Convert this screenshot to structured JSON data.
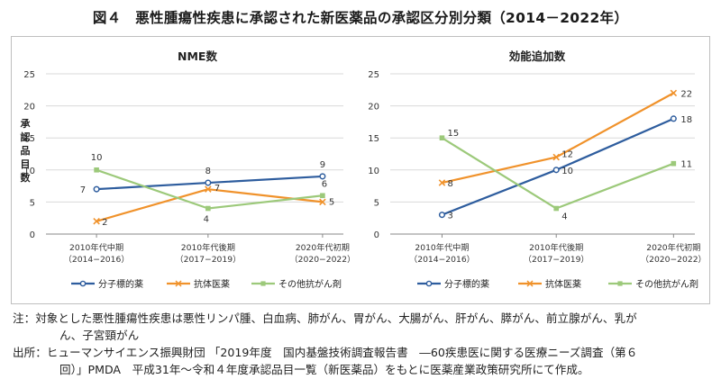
{
  "figure": {
    "title": "図４　悪性腫瘍性疾患に承認された新医薬品の承認区分別分類（2014－2022年）"
  },
  "colors": {
    "molecular": "#2e5d9e",
    "antibody": "#f0922b",
    "other": "#9cc97a",
    "grid": "#d9d9d9",
    "axis": "#888888"
  },
  "chart_data": [
    {
      "type": "line",
      "title": "NME数",
      "ylabel": "承認品目数",
      "ylim": [
        0,
        25
      ],
      "yticks": [
        0,
        5,
        10,
        15,
        20,
        25
      ],
      "categories": [
        {
          "line1": "2010年代中期",
          "line2": "（2014−2016）"
        },
        {
          "line1": "2010年代後期",
          "line2": "（2017−2019）"
        },
        {
          "line1": "2020年代初期",
          "line2": "（2020−2022）"
        }
      ],
      "series": [
        {
          "key": "molecular",
          "name": "分子標的薬",
          "values": [
            7,
            8,
            9
          ]
        },
        {
          "key": "antibody",
          "name": "抗体医薬",
          "values": [
            2,
            7,
            5
          ]
        },
        {
          "key": "other",
          "name": "その他抗がん剤",
          "values": [
            10,
            4,
            6
          ]
        }
      ]
    },
    {
      "type": "line",
      "title": "効能追加数",
      "ylabel": "",
      "ylim": [
        0,
        25
      ],
      "yticks": [
        0,
        5,
        10,
        15,
        20,
        25
      ],
      "categories": [
        {
          "line1": "2010年代中期",
          "line2": "（2014−2016）"
        },
        {
          "line1": "2010年代後期",
          "line2": "（2017−2019）"
        },
        {
          "line1": "2020年代初期",
          "line2": "（2020−2022）"
        }
      ],
      "series": [
        {
          "key": "molecular",
          "name": "分子標的薬",
          "values": [
            3,
            10,
            18
          ]
        },
        {
          "key": "antibody",
          "name": "抗体医薬",
          "values": [
            8,
            12,
            22
          ]
        },
        {
          "key": "other",
          "name": "その他抗がん剤",
          "values": [
            15,
            4,
            11
          ]
        }
      ]
    }
  ],
  "notes": {
    "note_prefix": "注：",
    "note_line1": "対象とした悪性腫瘍性疾患は悪性リンパ腫、白血病、肺がん、胃がん、大腸がん、肝がん、膵がん、前立腺がん、乳が",
    "note_line2": "ん、子宮頸がん",
    "source_prefix": "出所：",
    "source_line1": "ヒューマンサイエンス振興財団 「2019年度　国内基盤技術調査報告書　―60疾患医に関する医療ニーズ調査（第６",
    "source_line2": "回）」PMDA　平成31年～令和４年度承認品目一覧（新医薬品）をもとに医薬産業政策研究所にて作成。"
  }
}
